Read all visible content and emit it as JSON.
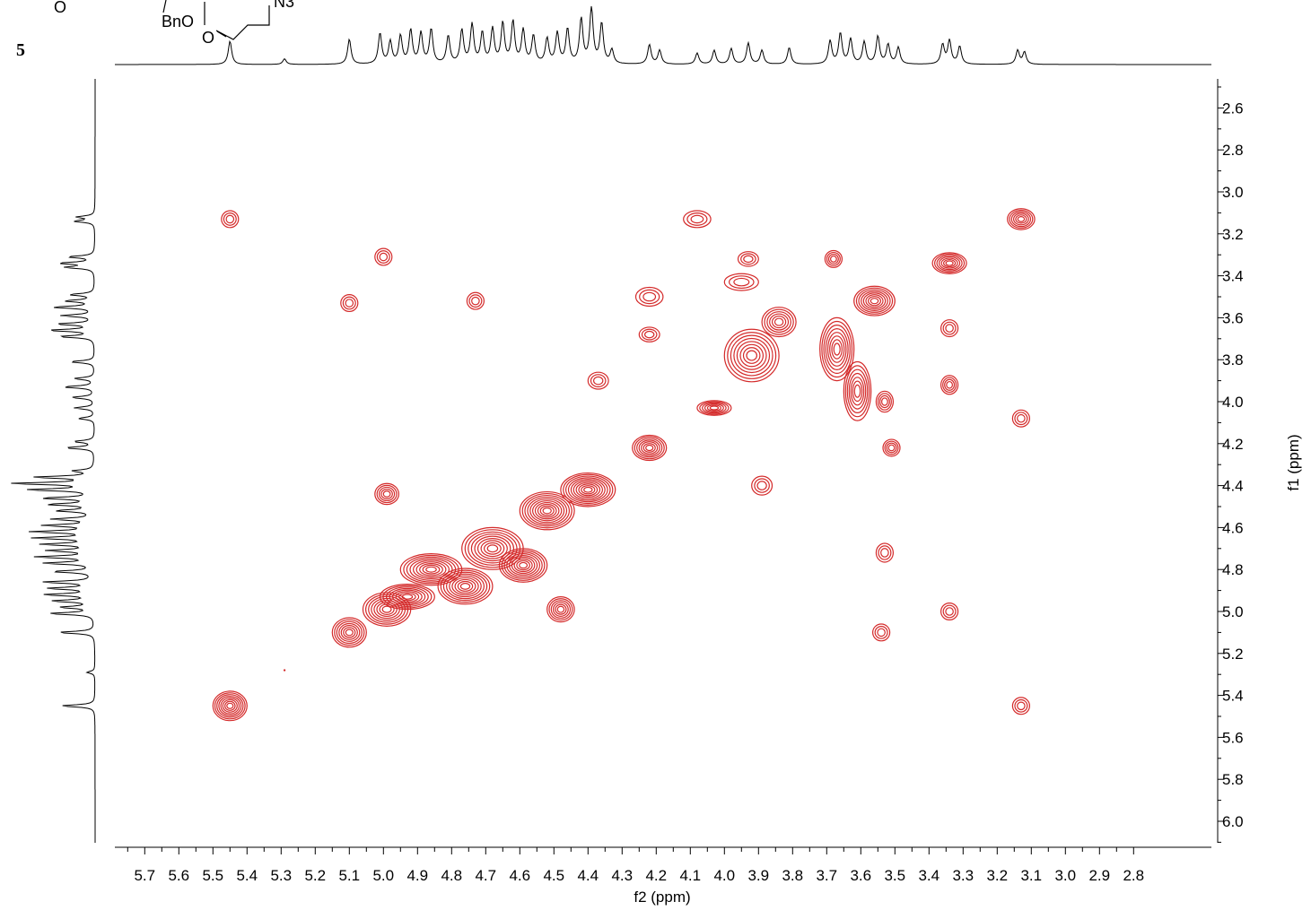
{
  "structure": {
    "compound_number": "5",
    "fragment_labels": [
      "BnO",
      "O",
      "O",
      "N3"
    ]
  },
  "chart_data": {
    "type": "heatmap",
    "subtype": "2D NMR (COSY) contour plot",
    "title": "",
    "xlabel": "f2 (ppm)",
    "ylabel": "f1 (ppm)",
    "xlim": [
      5.8,
      2.75
    ],
    "ylim": [
      2.5,
      6.1
    ],
    "x_reversed": true,
    "y_reversed": true,
    "x_ticks": [
      "5.7",
      "5.6",
      "5.5",
      "5.4",
      "5.3",
      "5.2",
      "5.1",
      "5.0",
      "4.9",
      "4.8",
      "4.7",
      "4.6",
      "4.5",
      "4.4",
      "4.3",
      "4.2",
      "4.1",
      "4.0",
      "3.9",
      "3.8",
      "3.7",
      "3.6",
      "3.5",
      "3.4",
      "3.3",
      "3.2",
      "3.1",
      "3.0",
      "2.9",
      "2.8"
    ],
    "y_ticks": [
      "2.6",
      "2.8",
      "3.0",
      "3.2",
      "3.4",
      "3.6",
      "3.8",
      "4.0",
      "4.2",
      "4.4",
      "4.6",
      "4.8",
      "5.0",
      "5.2",
      "5.4",
      "5.6",
      "5.8",
      "6.0"
    ],
    "contour_color": "#d42a2a",
    "grid": false,
    "projections": [
      "f2 1D spectrum (top)",
      "f1 1D spectrum (left)"
    ],
    "peaks_1d": [
      {
        "ppm": 5.45,
        "h": 0.42
      },
      {
        "ppm": 5.29,
        "h": 0.1
      },
      {
        "ppm": 5.1,
        "h": 0.45
      },
      {
        "ppm": 5.01,
        "h": 0.55
      },
      {
        "ppm": 4.98,
        "h": 0.4
      },
      {
        "ppm": 4.95,
        "h": 0.5
      },
      {
        "ppm": 4.92,
        "h": 0.6
      },
      {
        "ppm": 4.89,
        "h": 0.55
      },
      {
        "ppm": 4.86,
        "h": 0.62
      },
      {
        "ppm": 4.81,
        "h": 0.5
      },
      {
        "ppm": 4.77,
        "h": 0.6
      },
      {
        "ppm": 4.74,
        "h": 0.7
      },
      {
        "ppm": 4.71,
        "h": 0.55
      },
      {
        "ppm": 4.68,
        "h": 0.62
      },
      {
        "ppm": 4.65,
        "h": 0.72
      },
      {
        "ppm": 4.62,
        "h": 0.75
      },
      {
        "ppm": 4.59,
        "h": 0.6
      },
      {
        "ppm": 4.56,
        "h": 0.5
      },
      {
        "ppm": 4.52,
        "h": 0.45
      },
      {
        "ppm": 4.49,
        "h": 0.55
      },
      {
        "ppm": 4.46,
        "h": 0.62
      },
      {
        "ppm": 4.42,
        "h": 0.8
      },
      {
        "ppm": 4.39,
        "h": 1.0
      },
      {
        "ppm": 4.36,
        "h": 0.72
      },
      {
        "ppm": 4.33,
        "h": 0.25
      },
      {
        "ppm": 4.22,
        "h": 0.35
      },
      {
        "ppm": 4.19,
        "h": 0.25
      },
      {
        "ppm": 4.08,
        "h": 0.2
      },
      {
        "ppm": 4.03,
        "h": 0.25
      },
      {
        "ppm": 3.98,
        "h": 0.28
      },
      {
        "ppm": 3.93,
        "h": 0.38
      },
      {
        "ppm": 3.89,
        "h": 0.25
      },
      {
        "ppm": 3.81,
        "h": 0.3
      },
      {
        "ppm": 3.69,
        "h": 0.42
      },
      {
        "ppm": 3.66,
        "h": 0.55
      },
      {
        "ppm": 3.63,
        "h": 0.45
      },
      {
        "ppm": 3.59,
        "h": 0.4
      },
      {
        "ppm": 3.55,
        "h": 0.5
      },
      {
        "ppm": 3.52,
        "h": 0.35
      },
      {
        "ppm": 3.49,
        "h": 0.3
      },
      {
        "ppm": 3.36,
        "h": 0.35
      },
      {
        "ppm": 3.34,
        "h": 0.42
      },
      {
        "ppm": 3.31,
        "h": 0.32
      },
      {
        "ppm": 3.14,
        "h": 0.25
      },
      {
        "ppm": 3.12,
        "h": 0.22
      }
    ],
    "diagonal_peaks": [
      {
        "f2": 5.45,
        "f1": 5.45,
        "w": 0.05,
        "h": 0.14,
        "levels": 8
      },
      {
        "f2": 5.1,
        "f1": 5.1,
        "w": 0.05,
        "h": 0.14,
        "levels": 7
      },
      {
        "f2": 4.99,
        "f1": 4.99,
        "w": 0.07,
        "h": 0.16,
        "levels": 8
      },
      {
        "f2": 4.93,
        "f1": 4.93,
        "w": 0.08,
        "h": 0.12,
        "levels": 8
      },
      {
        "f2": 4.86,
        "f1": 4.8,
        "w": 0.09,
        "h": 0.15,
        "levels": 9
      },
      {
        "f2": 4.76,
        "f1": 4.88,
        "w": 0.08,
        "h": 0.17,
        "levels": 9
      },
      {
        "f2": 4.68,
        "f1": 4.7,
        "w": 0.09,
        "h": 0.2,
        "levels": 9
      },
      {
        "f2": 4.59,
        "f1": 4.78,
        "w": 0.07,
        "h": 0.16,
        "levels": 9
      },
      {
        "f2": 4.52,
        "f1": 4.52,
        "w": 0.08,
        "h": 0.18,
        "levels": 10
      },
      {
        "f2": 4.4,
        "f1": 4.42,
        "w": 0.08,
        "h": 0.16,
        "levels": 10
      },
      {
        "f2": 4.22,
        "f1": 4.22,
        "w": 0.05,
        "h": 0.12,
        "levels": 7
      },
      {
        "f2": 4.03,
        "f1": 4.03,
        "w": 0.05,
        "h": 0.07,
        "levels": 6
      },
      {
        "f2": 3.92,
        "f1": 3.78,
        "w": 0.08,
        "h": 0.25,
        "levels": 8
      },
      {
        "f2": 3.84,
        "f1": 3.62,
        "w": 0.05,
        "h": 0.14,
        "levels": 6
      },
      {
        "f2": 3.67,
        "f1": 3.75,
        "w": 0.05,
        "h": 0.3,
        "levels": 8
      },
      {
        "f2": 3.61,
        "f1": 3.95,
        "w": 0.04,
        "h": 0.28,
        "levels": 7
      },
      {
        "f2": 3.56,
        "f1": 3.52,
        "w": 0.06,
        "h": 0.14,
        "levels": 8
      },
      {
        "f2": 3.34,
        "f1": 3.34,
        "w": 0.05,
        "h": 0.1,
        "levels": 7
      },
      {
        "f2": 3.13,
        "f1": 3.13,
        "w": 0.04,
        "h": 0.1,
        "levels": 6
      }
    ],
    "cross_peaks": [
      {
        "f2": 5.45,
        "f1": 3.13,
        "w": 0.025,
        "h": 0.08,
        "levels": 3
      },
      {
        "f2": 5.1,
        "f1": 3.53,
        "w": 0.025,
        "h": 0.08,
        "levels": 3
      },
      {
        "f2": 5.0,
        "f1": 3.31,
        "w": 0.025,
        "h": 0.08,
        "levels": 3
      },
      {
        "f2": 4.99,
        "f1": 4.44,
        "w": 0.035,
        "h": 0.1,
        "levels": 5
      },
      {
        "f2": 4.73,
        "f1": 3.52,
        "w": 0.025,
        "h": 0.08,
        "levels": 3
      },
      {
        "f2": 4.48,
        "f1": 4.99,
        "w": 0.04,
        "h": 0.12,
        "levels": 6
      },
      {
        "f2": 4.37,
        "f1": 3.9,
        "w": 0.03,
        "h": 0.08,
        "levels": 3
      },
      {
        "f2": 4.22,
        "f1": 3.5,
        "w": 0.04,
        "h": 0.09,
        "levels": 3
      },
      {
        "f2": 4.22,
        "f1": 3.68,
        "w": 0.03,
        "h": 0.07,
        "levels": 3
      },
      {
        "f2": 4.08,
        "f1": 3.13,
        "w": 0.04,
        "h": 0.08,
        "levels": 3
      },
      {
        "f2": 3.95,
        "f1": 3.43,
        "w": 0.05,
        "h": 0.08,
        "levels": 3
      },
      {
        "f2": 3.93,
        "f1": 3.32,
        "w": 0.03,
        "h": 0.07,
        "levels": 3
      },
      {
        "f2": 3.89,
        "f1": 4.4,
        "w": 0.03,
        "h": 0.09,
        "levels": 3
      },
      {
        "f2": 3.68,
        "f1": 3.32,
        "w": 0.025,
        "h": 0.08,
        "levels": 4
      },
      {
        "f2": 3.54,
        "f1": 5.1,
        "w": 0.025,
        "h": 0.08,
        "levels": 3
      },
      {
        "f2": 3.53,
        "f1": 4.72,
        "w": 0.025,
        "h": 0.09,
        "levels": 3
      },
      {
        "f2": 3.53,
        "f1": 4.0,
        "w": 0.025,
        "h": 0.1,
        "levels": 4
      },
      {
        "f2": 3.51,
        "f1": 4.22,
        "w": 0.025,
        "h": 0.08,
        "levels": 4
      },
      {
        "f2": 3.34,
        "f1": 3.65,
        "w": 0.025,
        "h": 0.08,
        "levels": 3
      },
      {
        "f2": 3.34,
        "f1": 3.92,
        "w": 0.025,
        "h": 0.09,
        "levels": 4
      },
      {
        "f2": 3.34,
        "f1": 5.0,
        "w": 0.025,
        "h": 0.08,
        "levels": 3
      },
      {
        "f2": 3.13,
        "f1": 4.08,
        "w": 0.025,
        "h": 0.08,
        "levels": 3
      },
      {
        "f2": 3.13,
        "f1": 5.45,
        "w": 0.025,
        "h": 0.08,
        "levels": 3
      }
    ]
  }
}
